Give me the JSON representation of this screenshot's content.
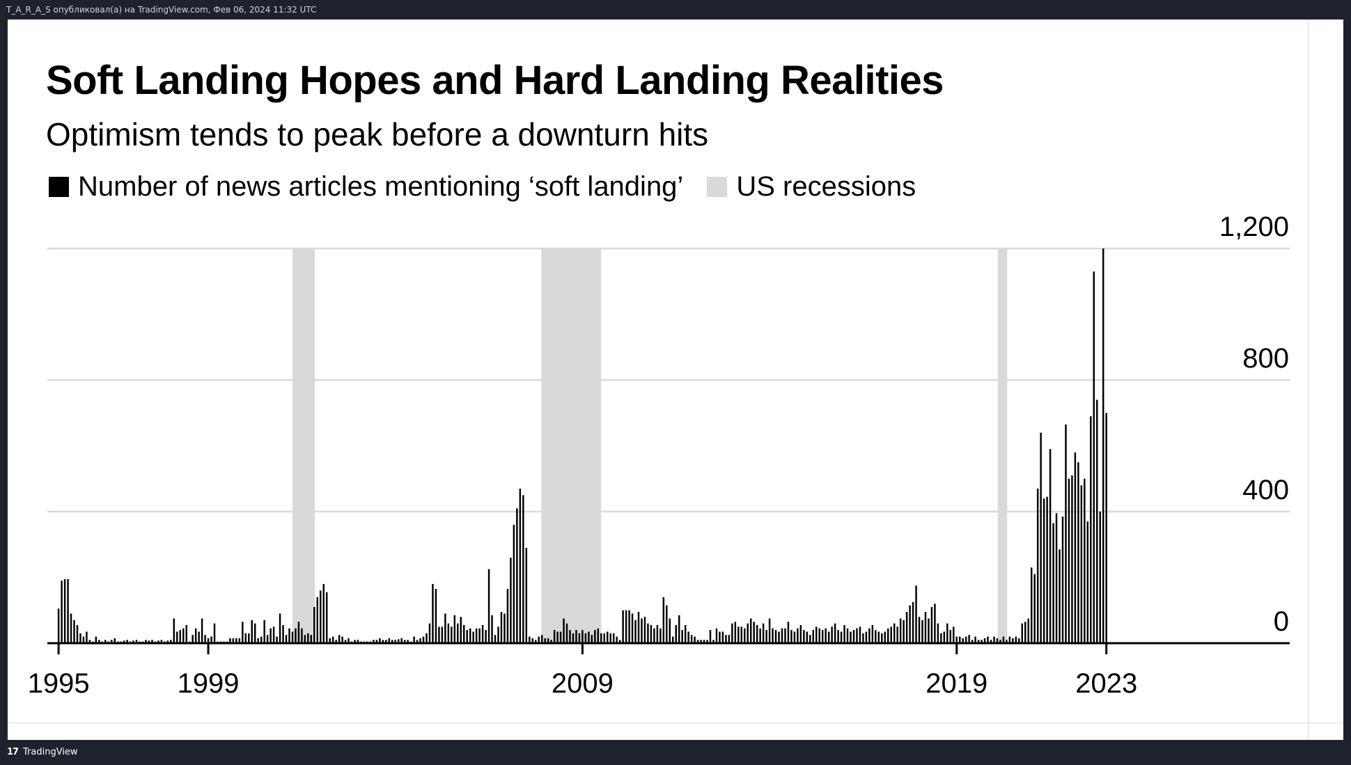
{
  "header": {
    "attribution": "T_A_R_A_S опубликовал(а) на TradingView.com, Фев 06, 2024 11:32 UTC"
  },
  "footer": {
    "brand": "TradingView",
    "logo_text": "17"
  },
  "colors": {
    "bars": "#000000",
    "recession": "#d9d9d9",
    "grid": "#d9d9d9",
    "background": "#ffffff",
    "frame": "#1e222d"
  },
  "chart_data": {
    "type": "bar",
    "title": "Soft Landing Hopes and Hard Landing Realities",
    "subtitle": "Optimism tends to peak before a downturn hits",
    "legend": [
      {
        "label": "Number of news articles mentioning ‘soft landing’",
        "color": "#000000",
        "kind": "bar"
      },
      {
        "label": "US recessions",
        "color": "#d9d9d9",
        "kind": "shade"
      }
    ],
    "legend_position": "top-left",
    "y_axis": {
      "ticks": [
        0,
        400,
        800,
        "1,200"
      ],
      "tick_values": [
        0,
        400,
        800,
        1200
      ],
      "ylim": [
        0,
        1200
      ],
      "side": "right",
      "grid": true
    },
    "x_axis": {
      "tick_labels": [
        "1995",
        "1999",
        "2009",
        "2019",
        "2023"
      ],
      "tick_positions": [
        1995.0,
        1999.0,
        2009.0,
        2019.0,
        2023.0
      ],
      "xlim": [
        1994.7,
        2027.9
      ]
    },
    "recessions": [
      {
        "start": 2001.25,
        "end": 2001.85
      },
      {
        "start": 2007.9,
        "end": 2009.5
      },
      {
        "start": 2020.1,
        "end": 2020.35
      }
    ],
    "series": [
      {
        "name": "Number of news articles mentioning ‘soft landing’",
        "start": 1995.0,
        "step": 0.0833333,
        "values": [
          105,
          190,
          195,
          195,
          90,
          70,
          55,
          30,
          20,
          35,
          10,
          5,
          20,
          10,
          5,
          10,
          5,
          10,
          15,
          5,
          5,
          8,
          10,
          5,
          8,
          10,
          5,
          5,
          10,
          8,
          10,
          5,
          8,
          10,
          5,
          8,
          10,
          75,
          35,
          40,
          45,
          55,
          5,
          25,
          45,
          35,
          75,
          25,
          15,
          20,
          60,
          5,
          5,
          5,
          5,
          15,
          15,
          15,
          15,
          65,
          30,
          30,
          70,
          60,
          15,
          20,
          70,
          25,
          45,
          50,
          20,
          90,
          55,
          25,
          45,
          35,
          45,
          65,
          45,
          25,
          30,
          25,
          110,
          140,
          160,
          180,
          155,
          15,
          20,
          10,
          25,
          20,
          10,
          15,
          5,
          10,
          10,
          5,
          5,
          5,
          5,
          10,
          10,
          15,
          10,
          10,
          15,
          10,
          10,
          12,
          15,
          10,
          10,
          5,
          20,
          10,
          15,
          20,
          30,
          60,
          180,
          165,
          50,
          50,
          90,
          60,
          50,
          85,
          60,
          80,
          55,
          40,
          45,
          35,
          45,
          45,
          55,
          40,
          225,
          85,
          25,
          50,
          95,
          90,
          165,
          260,
          360,
          410,
          470,
          450,
          290,
          20,
          15,
          10,
          20,
          25,
          15,
          15,
          10,
          40,
          35,
          35,
          75,
          60,
          40,
          30,
          40,
          30,
          40,
          30,
          35,
          25,
          40,
          45,
          30,
          30,
          35,
          30,
          30,
          20,
          10,
          100,
          100,
          100,
          90,
          70,
          95,
          75,
          80,
          60,
          55,
          45,
          55,
          45,
          140,
          115,
          75,
          20,
          55,
          85,
          40,
          55,
          35,
          25,
          20,
          10,
          10,
          10,
          10,
          40,
          10,
          45,
          35,
          35,
          25,
          25,
          60,
          65,
          50,
          50,
          45,
          60,
          75,
          65,
          55,
          45,
          60,
          40,
          75,
          45,
          40,
          35,
          45,
          45,
          65,
          40,
          35,
          45,
          55,
          40,
          35,
          25,
          40,
          50,
          45,
          40,
          45,
          35,
          50,
          60,
          40,
          35,
          55,
          45,
          35,
          40,
          45,
          50,
          30,
          35,
          45,
          55,
          40,
          35,
          30,
          35,
          45,
          50,
          60,
          50,
          75,
          70,
          95,
          115,
          125,
          175,
          80,
          70,
          95,
          75,
          110,
          120,
          60,
          30,
          35,
          60,
          40,
          50,
          20,
          20,
          15,
          20,
          25,
          10,
          20,
          10,
          10,
          15,
          20,
          10,
          20,
          15,
          10,
          20,
          10,
          20,
          15,
          20,
          15,
          60,
          65,
          75,
          230,
          210,
          470,
          640,
          440,
          445,
          590,
          365,
          395,
          285,
          385,
          665,
          500,
          510,
          580,
          550,
          480,
          500,
          370,
          690,
          1130,
          740,
          400,
          1200,
          700
        ]
      }
    ]
  }
}
